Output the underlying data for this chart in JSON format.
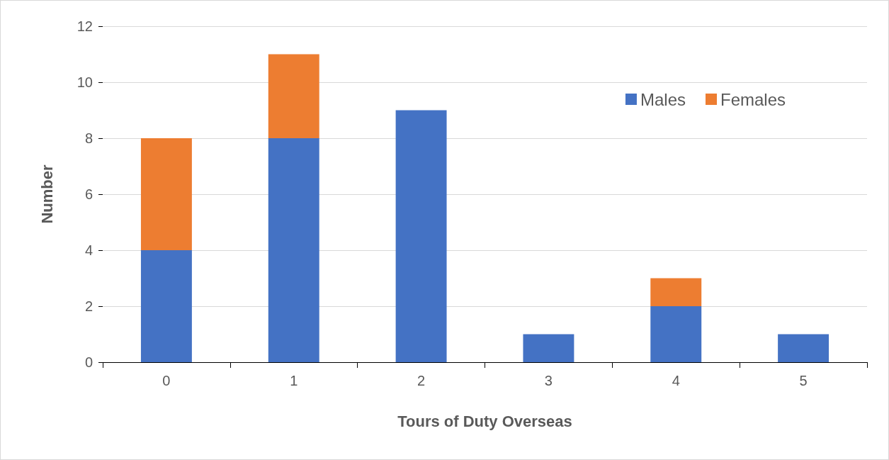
{
  "chart_data": {
    "type": "bar",
    "xlabel": "Tours of Duty Overseas",
    "ylabel": "Number",
    "categories": [
      "0",
      "1",
      "2",
      "3",
      "4",
      "5"
    ],
    "series": [
      {
        "name": "Males",
        "color": "#4472c4",
        "values": [
          4,
          8,
          9,
          1,
          2,
          1
        ]
      },
      {
        "name": "Females",
        "color": "#ed7d31",
        "values": [
          4,
          3,
          0,
          0,
          1,
          0
        ]
      }
    ],
    "stacked": true,
    "ylim": [
      0,
      12
    ],
    "yticks": [
      0,
      2,
      4,
      6,
      8,
      10,
      12
    ],
    "grid": "y",
    "legend": "top right"
  }
}
